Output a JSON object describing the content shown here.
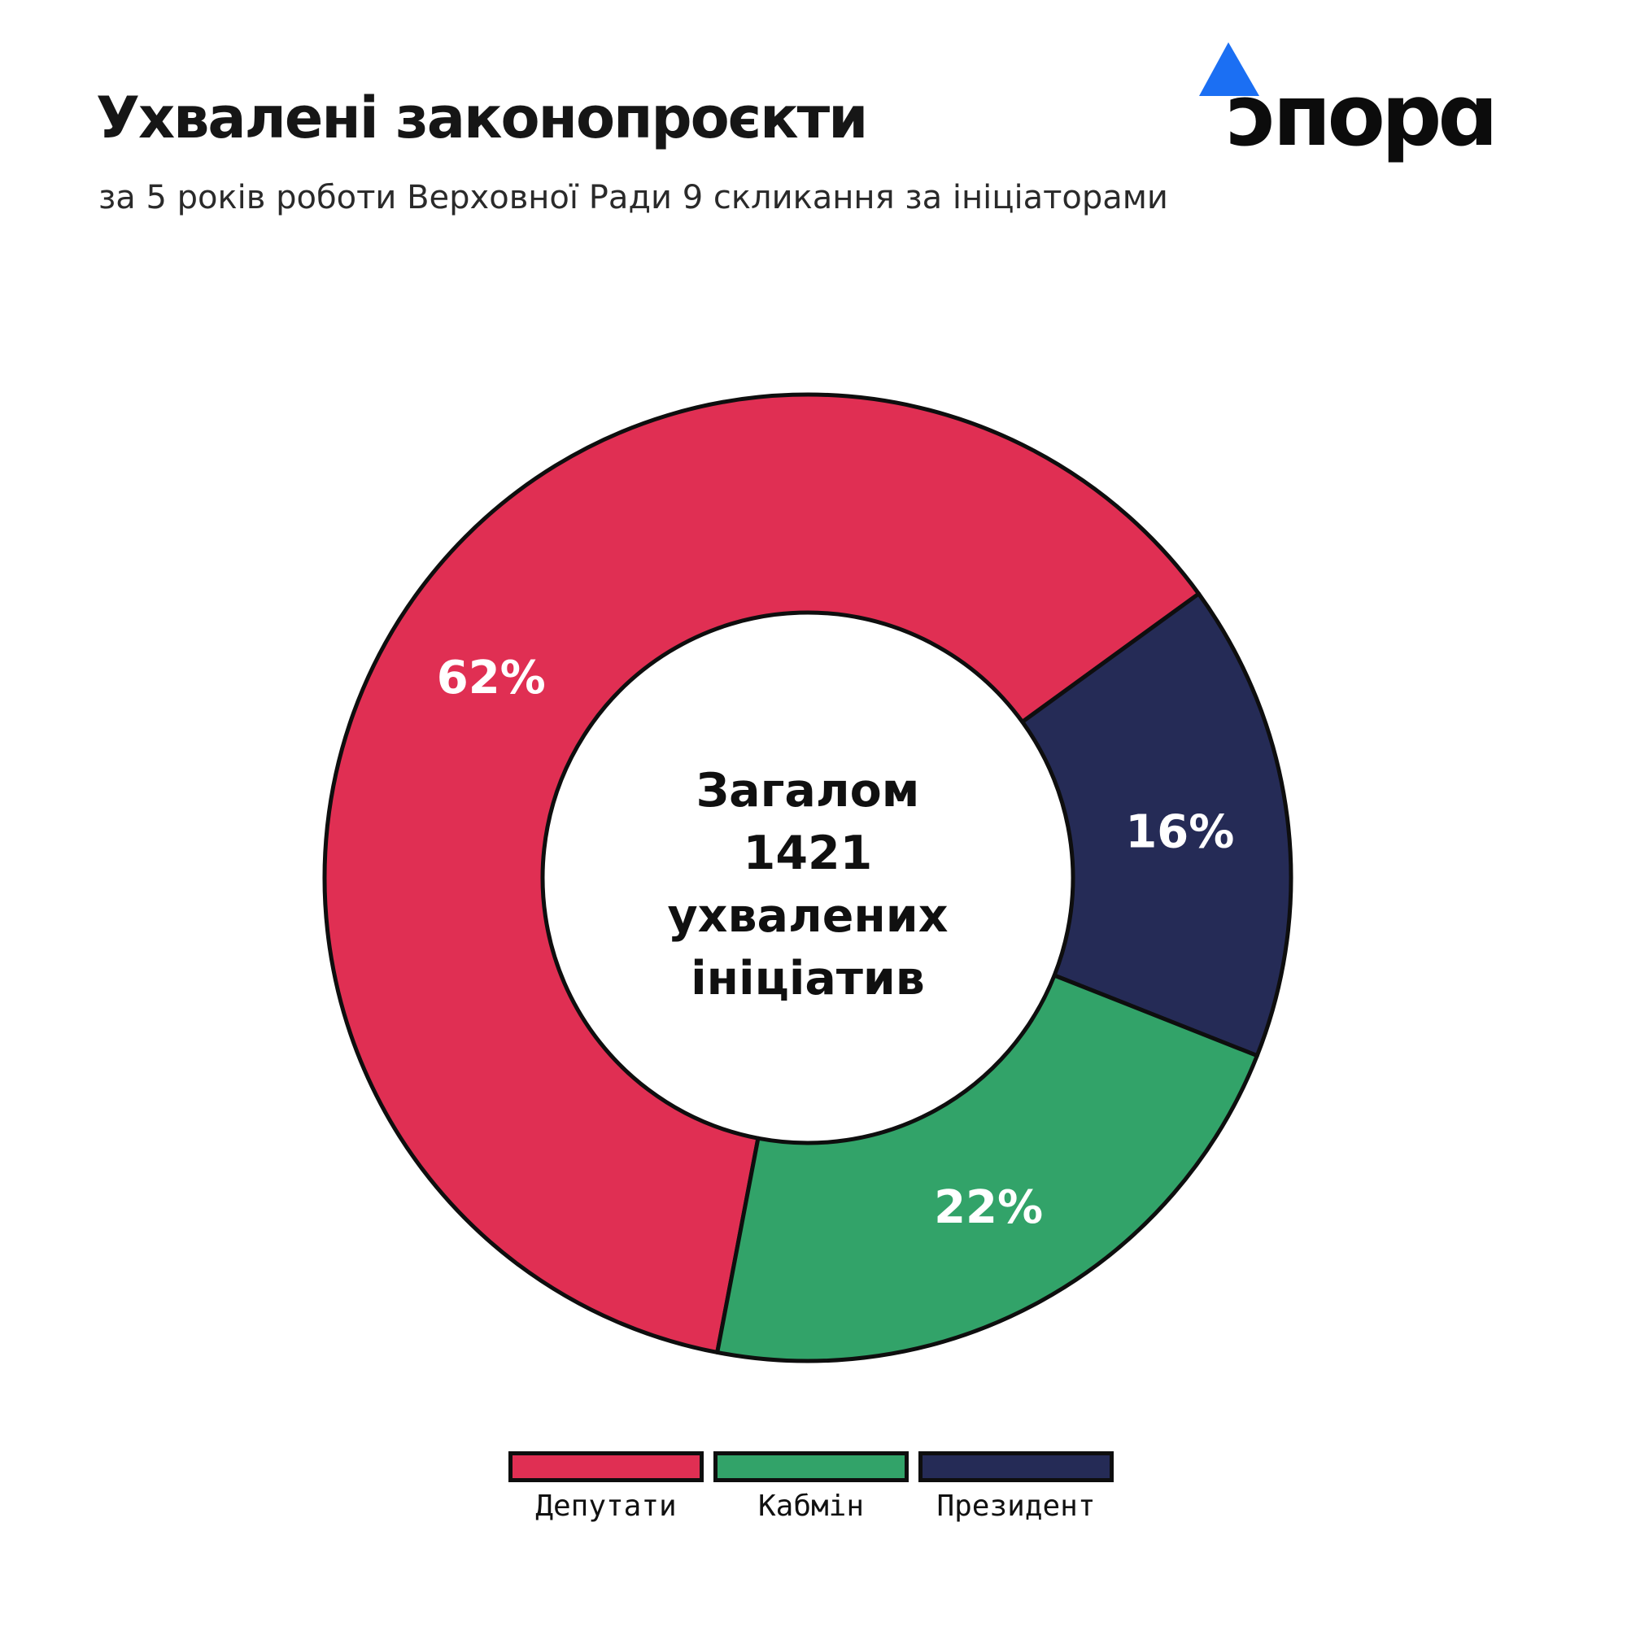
{
  "header": {
    "title": "Ухвалені законопроєкти",
    "subtitle": "за 5 років роботи Верховної Ради 9 скликання за ініціаторами"
  },
  "logo": {
    "brand_name": "опора",
    "display_text": "ɔпорɑ",
    "triangle_color": "#1B6FF3",
    "text_color": "#0c0c0c"
  },
  "chart_data": {
    "type": "pie",
    "variant": "donut",
    "center_lines": [
      "Загалом",
      "1421",
      "ухвалених",
      "ініціатив"
    ],
    "total_value": 1421,
    "series": [
      {
        "label": "Депутати",
        "pct": 62,
        "color": "#E02F53"
      },
      {
        "label": "Кабмін",
        "pct": 22,
        "color": "#32A369"
      },
      {
        "label": "Президент",
        "pct": 16,
        "color": "#252B56"
      }
    ],
    "clockwise_draw_order": [
      0,
      2,
      1
    ],
    "start_angle_deg": 190.8,
    "outline_color": "#0e0e0e",
    "label_color": "#ffffff",
    "legend_position": "bottom"
  }
}
